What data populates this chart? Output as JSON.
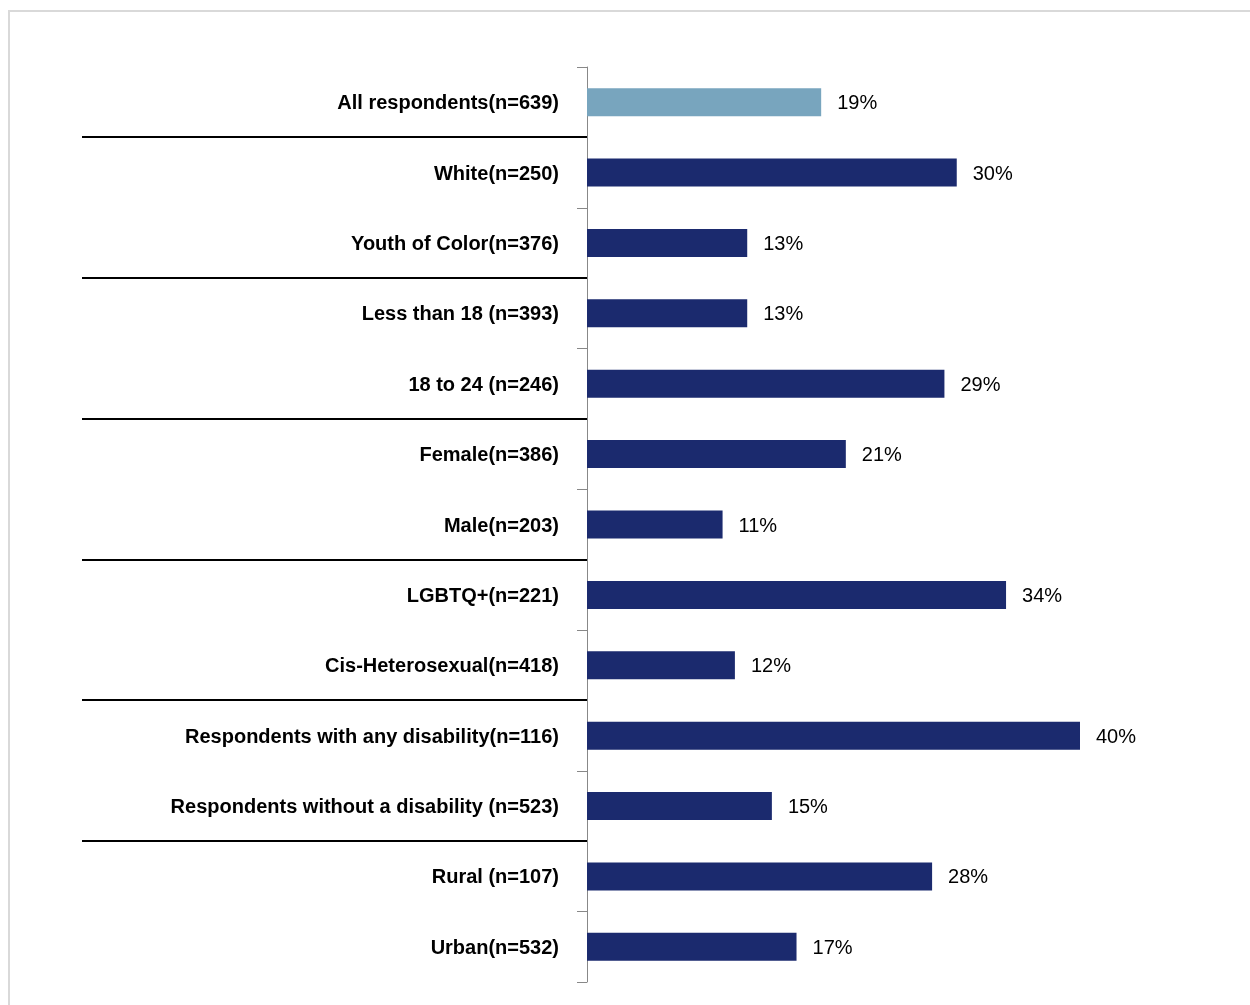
{
  "chart_data": {
    "type": "bar",
    "orientation": "horizontal",
    "categories": [
      "All respondents(n=639)",
      "White(n=250)",
      "Youth of Color(n=376)",
      "Less than 18 (n=393)",
      "18 to 24 (n=246)",
      "Female(n=386)",
      "Male(n=203)",
      "LGBTQ+(n=221)",
      "Cis-Heterosexual(n=418)",
      "Respondents with any disability(n=116)",
      "Respondents without a disability (n=523)",
      "Rural (n=107)",
      "Urban(n=532)"
    ],
    "values": [
      19,
      30,
      13,
      13,
      29,
      21,
      11,
      34,
      12,
      40,
      15,
      28,
      17
    ],
    "value_labels": [
      "19%",
      "30%",
      "13%",
      "13%",
      "29%",
      "21%",
      "11%",
      "34%",
      "12%",
      "40%",
      "15%",
      "28%",
      "17%"
    ],
    "colors": [
      "#78a5be",
      "#1b2a6e",
      "#1b2a6e",
      "#1b2a6e",
      "#1b2a6e",
      "#1b2a6e",
      "#1b2a6e",
      "#1b2a6e",
      "#1b2a6e",
      "#1b2a6e",
      "#1b2a6e",
      "#1b2a6e",
      "#1b2a6e"
    ],
    "grid": false
  }
}
